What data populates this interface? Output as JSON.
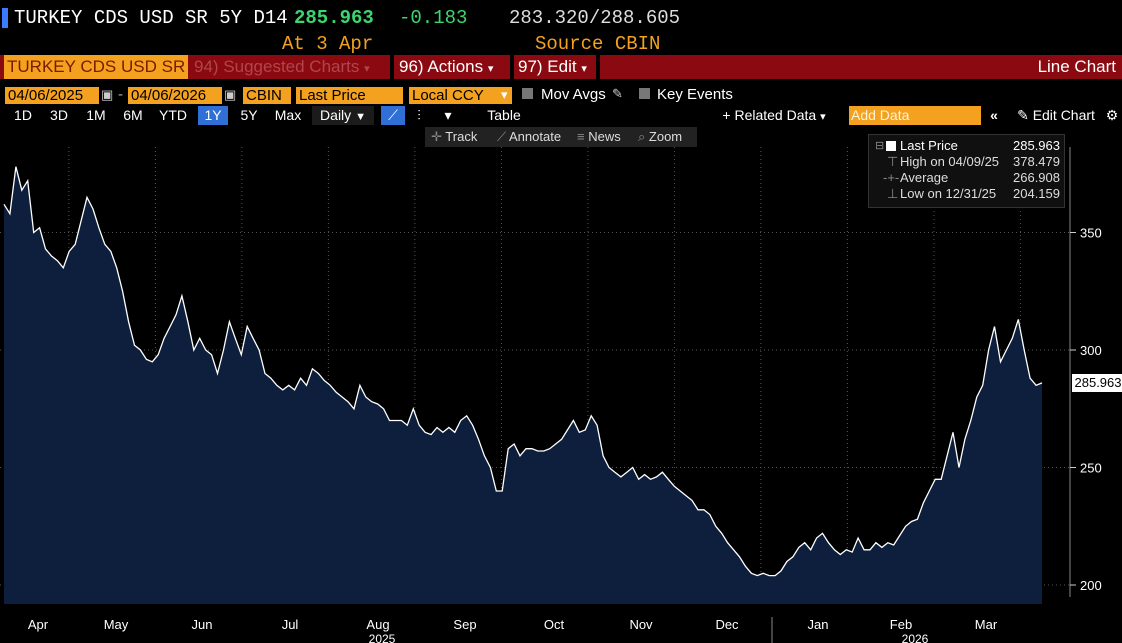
{
  "header": {
    "ticker": "TURKEY CDS USD SR 5Y D14",
    "last_price": "285.963",
    "change": "-0.183",
    "range": "283.320/288.605",
    "asof": "At 3 Apr",
    "source": "Source CBIN"
  },
  "toolbar": {
    "security": "TURKEY CDS USD SR",
    "suggested": "94) Suggested Charts",
    "actions": "96) Actions",
    "edit": "97) Edit",
    "chart_type": "Line Chart"
  },
  "settings": {
    "start_date": "04/06/2025",
    "end_date": "04/06/2026",
    "source": "CBIN",
    "field": "Last Price",
    "currency": "Local CCY",
    "mov_avgs": "Mov Avgs",
    "key_events": "Key Events"
  },
  "range_buttons": [
    "1D",
    "3D",
    "1M",
    "6M",
    "YTD",
    "1Y",
    "5Y",
    "Max"
  ],
  "active_range": "1Y",
  "periodicity": "Daily",
  "table_label": "Table",
  "related_data": "+ Related Data",
  "add_data_placeholder": "Add Data",
  "edit_chart": "Edit Chart",
  "subbar": {
    "track": "Track",
    "annotate": "Annotate",
    "news": "News",
    "zoom": "Zoom"
  },
  "legend": {
    "last_label": "Last Price",
    "last_value": "285.963",
    "high_label": "High on 04/09/25",
    "high_value": "378.479",
    "avg_label": "Average",
    "avg_value": "266.908",
    "low_label": "Low on 12/31/25",
    "low_value": "204.159"
  },
  "last_tag": "285.963",
  "colors": {
    "accent_orange": "#f3a11f",
    "toolbar_red": "#8b0a11",
    "price_green": "#3cd66f",
    "area_fill": "#0d1f3c",
    "line": "#ffffff"
  },
  "chart_data": {
    "type": "area",
    "ylim": [
      190,
      385
    ],
    "yticks": [
      200,
      250,
      300,
      350
    ],
    "month_labels": [
      "Apr",
      "May",
      "Jun",
      "Jul",
      "Aug",
      "Sep",
      "Oct",
      "Nov",
      "Dec",
      "Jan",
      "Feb",
      "Mar"
    ],
    "year_labels": [
      {
        "label": "2025",
        "after_month": 4
      },
      {
        "label": "2026",
        "after_month": 10
      }
    ],
    "series": [
      {
        "values": [
          362,
          358,
          378,
          368,
          372,
          350,
          352,
          343,
          340,
          338,
          335,
          342,
          345,
          355,
          365,
          360,
          352,
          345,
          342,
          335,
          325,
          312,
          302,
          300,
          296,
          295,
          298,
          305,
          310,
          315,
          323,
          312,
          300,
          305,
          300,
          298,
          290,
          300,
          312,
          305,
          298,
          310,
          305,
          300,
          290,
          288,
          285,
          283,
          285,
          283,
          288,
          285,
          292,
          290,
          287,
          285,
          282,
          280,
          278,
          275,
          285,
          280,
          278,
          277,
          275,
          270,
          270,
          270,
          268,
          275,
          268,
          265,
          264,
          267,
          265,
          267,
          265,
          270,
          272,
          268,
          262,
          255,
          250,
          240,
          240,
          258,
          260,
          255,
          258,
          258,
          257,
          257,
          258,
          260,
          262,
          266,
          270,
          265,
          266,
          272,
          268,
          255,
          250,
          248,
          246,
          248,
          250,
          245,
          247,
          245,
          246,
          248,
          245,
          242,
          240,
          238,
          236,
          232,
          232,
          230,
          225,
          222,
          218,
          215,
          212,
          208,
          205,
          204,
          205,
          204,
          204,
          206,
          210,
          212,
          216,
          218,
          215,
          220,
          222,
          218,
          215,
          213,
          215,
          214,
          220,
          215,
          215,
          218,
          216,
          218,
          217,
          221,
          225,
          227,
          228,
          235,
          240,
          245,
          245,
          255,
          265,
          250,
          262,
          270,
          280,
          285,
          300,
          310,
          295,
          300,
          305,
          313,
          300,
          288,
          285,
          286
        ]
      }
    ]
  }
}
